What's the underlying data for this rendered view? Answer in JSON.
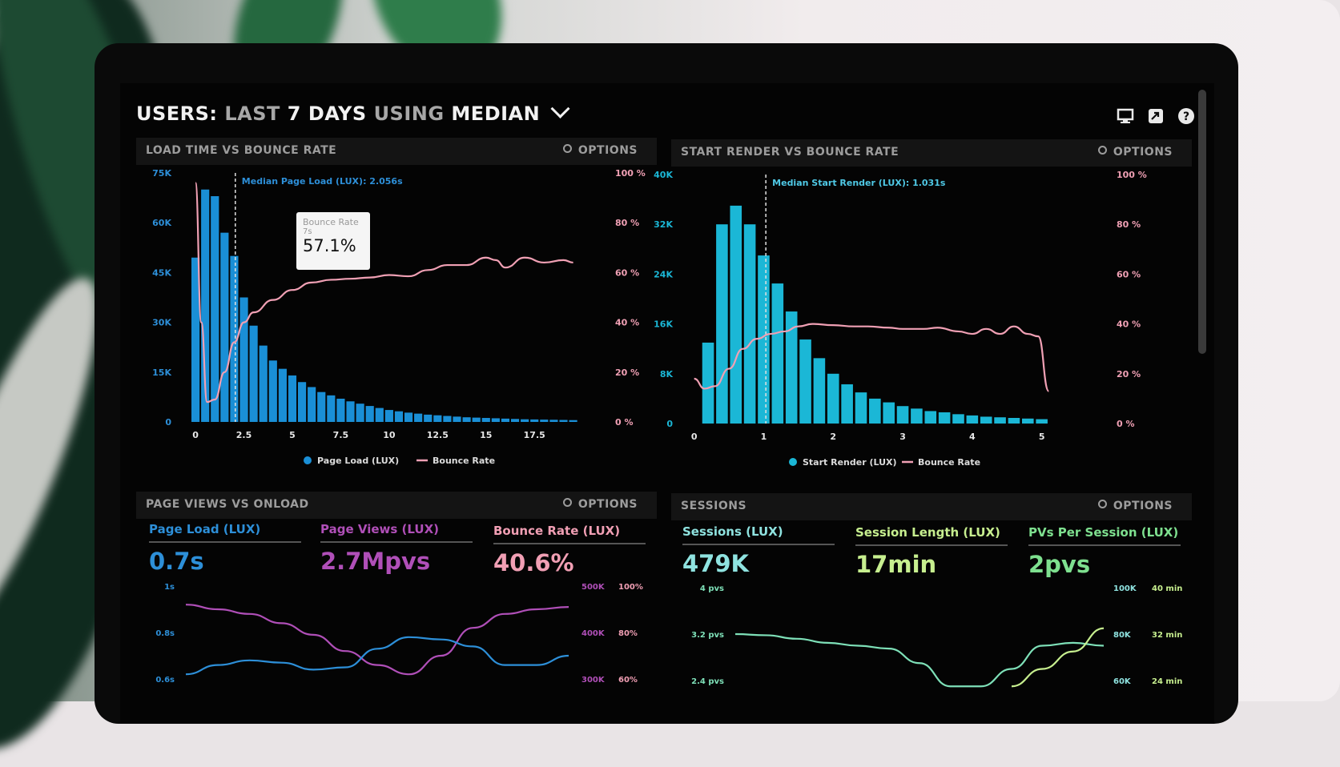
{
  "header": {
    "title_users": "USERS:",
    "title_last": "LAST",
    "title_days": "7 DAYS",
    "title_using": "USING",
    "title_median": "MEDIAN",
    "icons": [
      "monitor-icon",
      "share-icon",
      "help-icon"
    ]
  },
  "panels": {
    "load_time": {
      "title": "LOAD TIME VS BOUNCE RATE",
      "options": "OPTIONS",
      "median_label": "Median Page Load (LUX): 2.056s",
      "tooltip": {
        "label": "Bounce Rate",
        "sub": "7s",
        "value": "57.1%"
      },
      "legend": [
        "Page Load (LUX)",
        "Bounce Rate"
      ]
    },
    "start_render": {
      "title": "START RENDER VS BOUNCE RATE",
      "options": "OPTIONS",
      "median_label": "Median Start Render (LUX): 1.031s",
      "legend": [
        "Start Render (LUX)",
        "Bounce Rate"
      ]
    },
    "page_views": {
      "title": "PAGE VIEWS VS ONLOAD",
      "options": "OPTIONS",
      "metrics": [
        {
          "label": "Page Load (LUX)",
          "value": "0.7s",
          "color": "#2d8fd8"
        },
        {
          "label": "Page Views (LUX)",
          "value": "2.7Mpvs",
          "color": "#b04fb8"
        },
        {
          "label": "Bounce Rate (LUX)",
          "value": "40.6%",
          "color": "#f19fb4"
        }
      ]
    },
    "sessions": {
      "title": "SESSIONS",
      "options": "OPTIONS",
      "metrics": [
        {
          "label": "Sessions (LUX)",
          "value": "479K",
          "color": "#8fe3e0"
        },
        {
          "label": "Session Length (LUX)",
          "value": "17min",
          "color": "#c7ef8f"
        },
        {
          "label": "PVs Per Session (LUX)",
          "value": "2pvs",
          "color": "#7ee08f"
        }
      ]
    }
  },
  "chart_data": [
    {
      "type": "bar",
      "title": "LOAD TIME VS BOUNCE RATE",
      "x_ticks": [
        "0",
        "2.5",
        "5",
        "7.5",
        "10",
        "12.5",
        "15",
        "17.5"
      ],
      "xlim": [
        -0.5,
        19.6
      ],
      "y_left_ticks": [
        "0",
        "15K",
        "30K",
        "45K",
        "60K",
        "75K"
      ],
      "ylim_left": [
        0,
        75000
      ],
      "y_right_ticks": [
        "0 %",
        "20 %",
        "40 %",
        "60 %",
        "80 %",
        "100 %"
      ],
      "ylim_right": [
        0,
        100
      ],
      "median_x": 2.056,
      "series": [
        {
          "name": "Page Load (LUX)",
          "color": "#1a8fd6",
          "x": [
            0,
            0.5,
            1,
            1.5,
            2,
            2.5,
            3,
            3.5,
            4,
            4.5,
            5,
            5.5,
            6,
            6.5,
            7,
            7.5,
            8,
            8.5,
            9,
            9.5,
            10,
            10.5,
            11,
            11.5,
            12,
            12.5,
            13,
            13.5,
            14,
            14.5,
            15,
            15.5,
            16,
            16.5,
            17,
            17.5,
            18,
            18.5,
            19,
            19.5
          ],
          "values": [
            49500,
            70000,
            68000,
            57000,
            50000,
            37500,
            29000,
            23000,
            18500,
            16000,
            14000,
            12000,
            10500,
            9000,
            8000,
            7000,
            6200,
            5500,
            4800,
            4200,
            3600,
            3200,
            2800,
            2500,
            2200,
            2000,
            1800,
            1600,
            1400,
            1300,
            1200,
            1100,
            1000,
            900,
            800,
            750,
            700,
            650,
            600,
            550
          ]
        },
        {
          "name": "Bounce Rate",
          "color": "#f0a0b4",
          "x": [
            0,
            0.3,
            0.6,
            1,
            1.5,
            2,
            2.5,
            3,
            4,
            5,
            6,
            7,
            8,
            9,
            10,
            11,
            12,
            13,
            14,
            15,
            15.5,
            16,
            17,
            18,
            19,
            19.5
          ],
          "values": [
            96,
            40,
            8,
            9,
            20,
            32,
            40,
            44,
            49,
            53,
            56,
            57.1,
            57.5,
            58,
            59,
            58.5,
            61,
            63,
            63,
            66,
            65,
            62,
            66,
            64,
            65,
            64
          ]
        }
      ]
    },
    {
      "type": "bar",
      "title": "START RENDER VS BOUNCE RATE",
      "x_ticks": [
        "0",
        "1",
        "2",
        "3",
        "4",
        "5"
      ],
      "xlim": [
        -0.1,
        5.2
      ],
      "y_left_ticks": [
        "0",
        "8K",
        "16K",
        "24K",
        "32K",
        "40K"
      ],
      "ylim_left": [
        0,
        40000
      ],
      "y_right_ticks": [
        "0 %",
        "20 %",
        "40 %",
        "60 %",
        "80 %",
        "100 %"
      ],
      "ylim_right": [
        0,
        100
      ],
      "median_x": 1.031,
      "series": [
        {
          "name": "Start Render (LUX)",
          "color": "#1bb7d6",
          "x": [
            0.2,
            0.4,
            0.6,
            0.8,
            1.0,
            1.2,
            1.4,
            1.6,
            1.8,
            2.0,
            2.2,
            2.4,
            2.6,
            2.8,
            3.0,
            3.2,
            3.4,
            3.6,
            3.8,
            4.0,
            4.2,
            4.4,
            4.6,
            4.8,
            5.0
          ],
          "values": [
            13000,
            32000,
            35000,
            32000,
            27000,
            22500,
            18000,
            13500,
            10500,
            8000,
            6300,
            5000,
            4000,
            3400,
            2800,
            2400,
            2000,
            1800,
            1500,
            1300,
            1100,
            1000,
            900,
            800,
            700
          ]
        },
        {
          "name": "Bounce Rate",
          "color": "#f0a0b4",
          "x": [
            0,
            0.15,
            0.3,
            0.5,
            0.7,
            0.9,
            1.1,
            1.3,
            1.5,
            1.7,
            2.0,
            2.3,
            2.5,
            2.8,
            3.0,
            3.3,
            3.5,
            3.8,
            4.0,
            4.2,
            4.4,
            4.6,
            4.8,
            4.95,
            5.1
          ],
          "values": [
            18,
            14,
            15,
            22,
            30,
            34,
            36,
            37,
            39,
            40,
            39.5,
            39,
            39,
            38.5,
            38,
            38,
            38.5,
            37,
            36,
            38,
            36,
            39,
            36,
            35,
            13
          ]
        }
      ]
    },
    {
      "type": "line",
      "title": "PAGE VIEWS VS ONLOAD",
      "y_left_ticks": [
        "1s",
        "0.8s",
        "0.6s"
      ],
      "y_right_ticks_a": [
        "500K",
        "400K",
        "300K"
      ],
      "y_right_ticks_b": [
        "100%",
        "80%",
        "60%"
      ],
      "series": [
        {
          "name": "Page Views (LUX)",
          "color": "#b04fb8",
          "values": [
            0.92,
            0.9,
            0.88,
            0.84,
            0.79,
            0.72,
            0.66,
            0.62,
            0.7,
            0.82,
            0.88,
            0.9,
            0.91
          ]
        },
        {
          "name": "Page Load (LUX)",
          "color": "#2d8fd8",
          "values": [
            0.62,
            0.66,
            0.68,
            0.67,
            0.64,
            0.65,
            0.73,
            0.78,
            0.77,
            0.74,
            0.66,
            0.66,
            0.7
          ]
        }
      ]
    },
    {
      "type": "line",
      "title": "SESSIONS",
      "y_left_ticks": [
        "4 pvs",
        "3.2 pvs",
        "2.4 pvs"
      ],
      "y_right_ticks_a": [
        "100K",
        "80K",
        "60K"
      ],
      "y_right_ticks_b": [
        "40 min",
        "32 min",
        "24 min"
      ],
      "series": [
        {
          "name": "Sessions (LUX)",
          "color": "#7ee0b8",
          "values": [
            3.2,
            3.18,
            3.12,
            3.05,
            3.0,
            2.95,
            2.7,
            2.3,
            2.3,
            2.6,
            3.0,
            3.05,
            3.0
          ]
        },
        {
          "name": "Session Length (LUX)",
          "color": "#c7ef8f",
          "values": [
            null,
            null,
            null,
            null,
            null,
            null,
            null,
            null,
            null,
            2.3,
            2.6,
            2.9,
            3.3
          ]
        }
      ]
    }
  ]
}
